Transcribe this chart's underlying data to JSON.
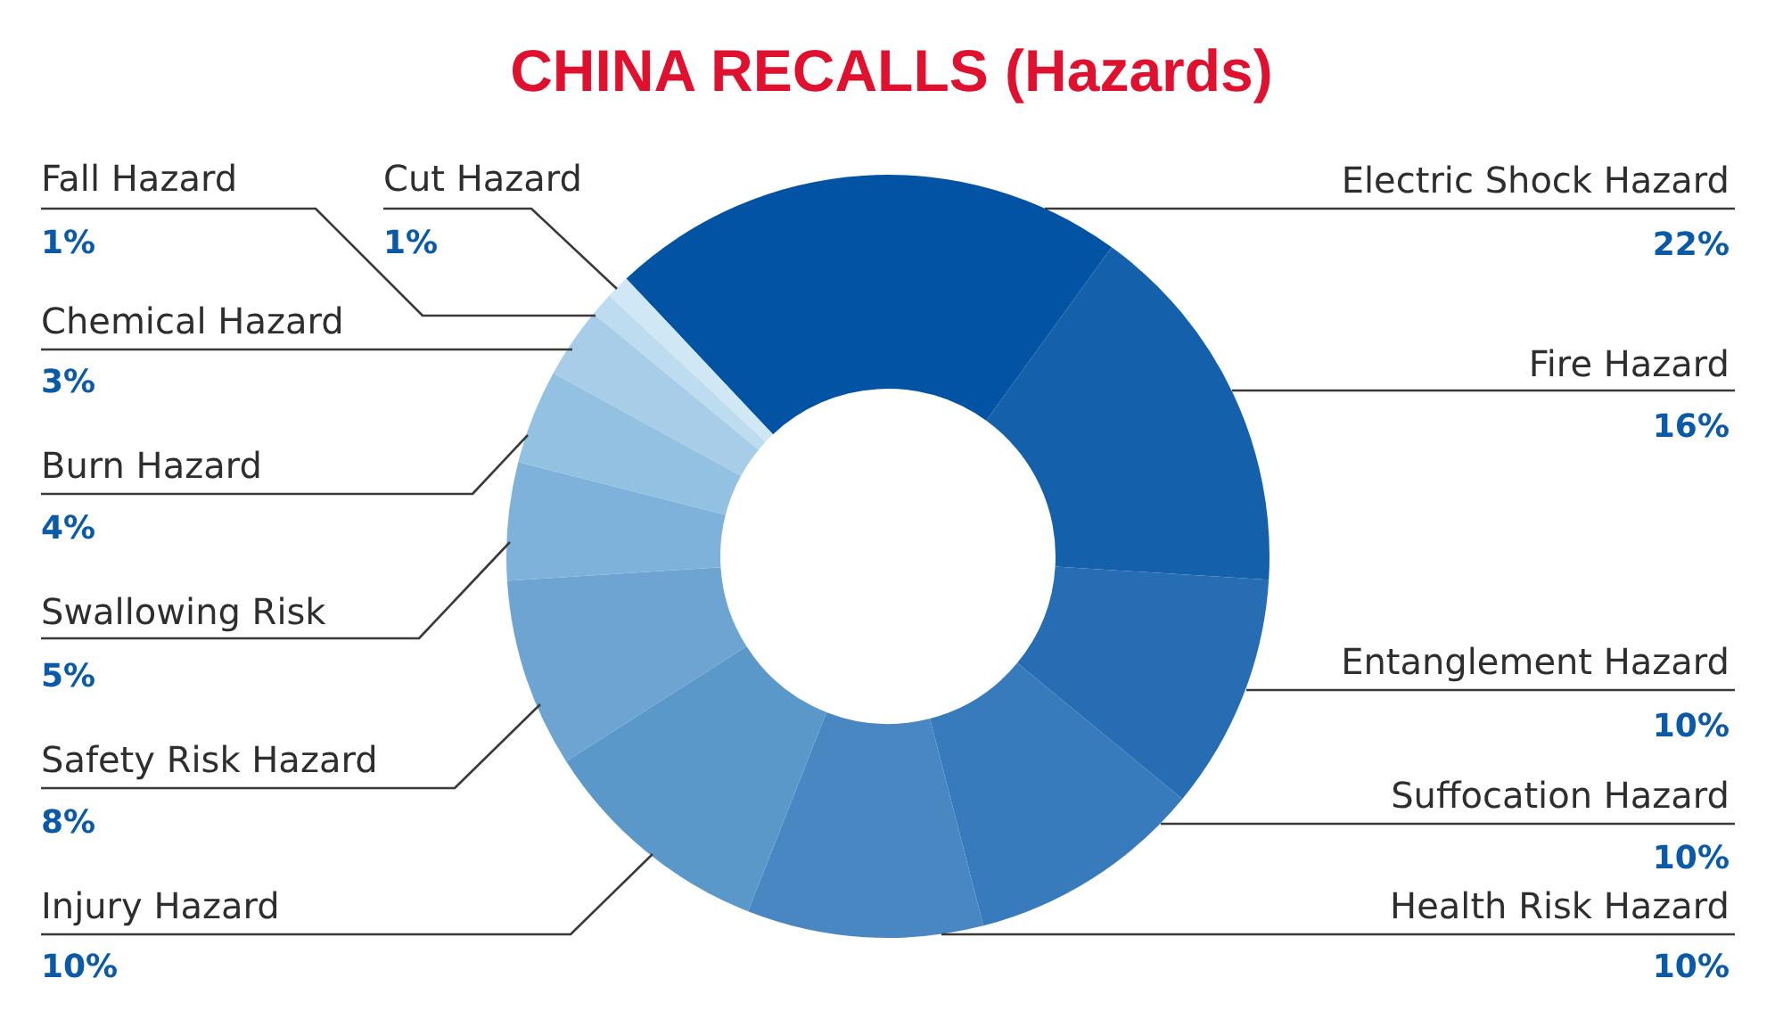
{
  "chart_data": {
    "type": "donut",
    "title": "CHINA RECALLS (Hazards)",
    "categories": [
      "Electric Shock Hazard",
      "Fire Hazard",
      "Entanglement Hazard",
      "Suffocation Hazard",
      "Health Risk Hazard",
      "Injury Hazard",
      "Safety Risk Hazard",
      "Swallowing Risk",
      "Burn Hazard",
      "Chemical Hazard",
      "Fall Hazard",
      "Cut Hazard"
    ],
    "values": [
      22,
      16,
      10,
      10,
      10,
      10,
      8,
      5,
      4,
      3,
      1,
      1
    ],
    "value_labels": [
      "22%",
      "16%",
      "10%",
      "10%",
      "10%",
      "10%",
      "8%",
      "5%",
      "4%",
      "3%",
      "1%",
      "1%"
    ],
    "colors": [
      "#0253a4",
      "#1560ab",
      "#276db3",
      "#387bbc",
      "#4987c3",
      "#5a98ca",
      "#6da4d1",
      "#7fb2da",
      "#93c1e2",
      "#a8cde8",
      "#bddcf0",
      "#d0e7f6"
    ],
    "legend": false
  }
}
